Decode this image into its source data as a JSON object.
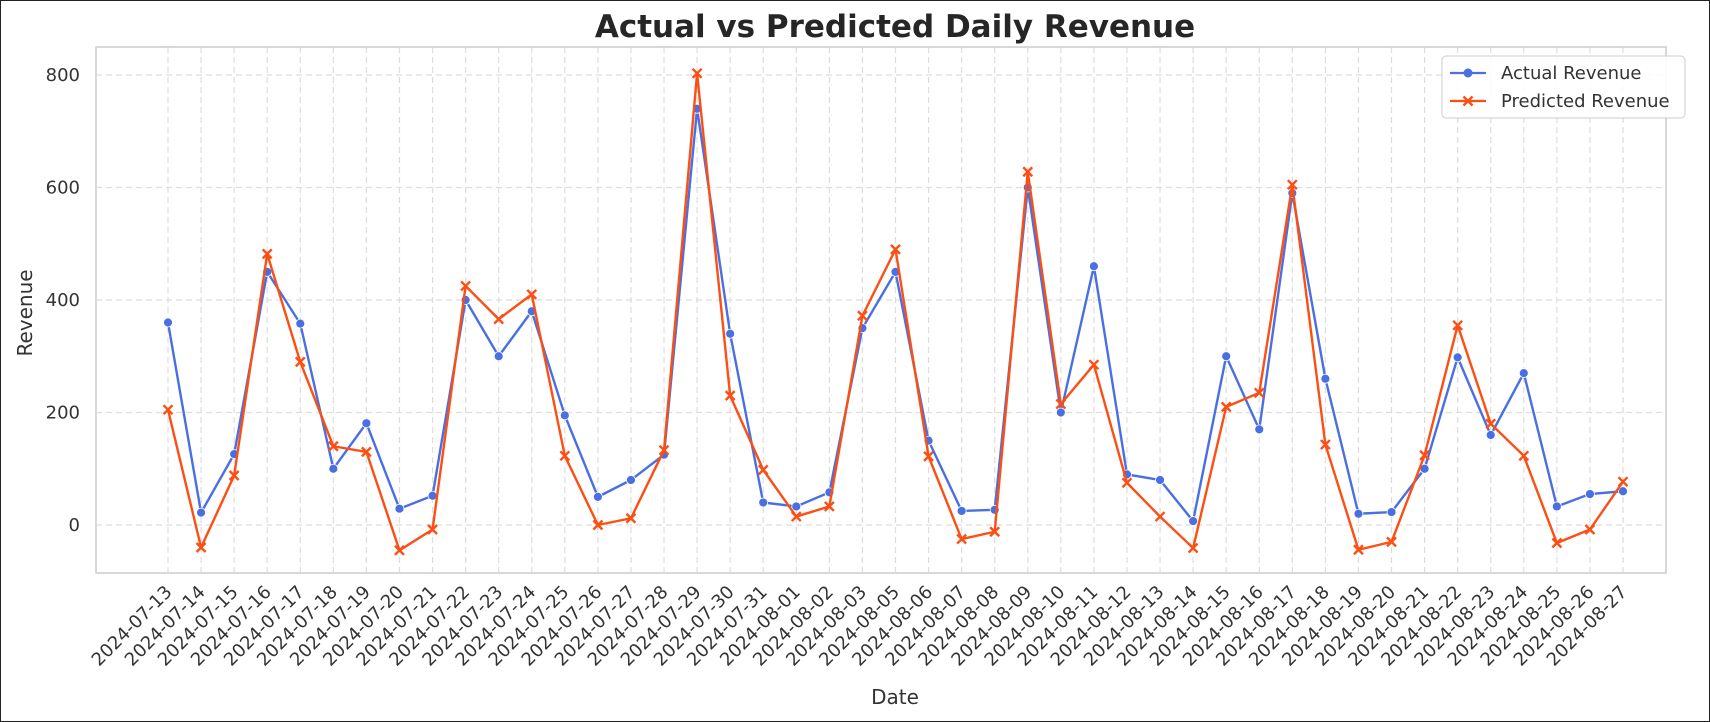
{
  "chart_data": {
    "type": "line",
    "title": "Actual vs Predicted Daily Revenue",
    "xlabel": "Date",
    "ylabel": "Revenue",
    "ylim": [
      -85,
      850
    ],
    "yticks": [
      0,
      200,
      400,
      600,
      800
    ],
    "grid": true,
    "legend_position": "top-right",
    "categories": [
      "2024-07-13",
      "2024-07-14",
      "2024-07-15",
      "2024-07-16",
      "2024-07-17",
      "2024-07-18",
      "2024-07-19",
      "2024-07-20",
      "2024-07-21",
      "2024-07-22",
      "2024-07-23",
      "2024-07-24",
      "2024-07-25",
      "2024-07-26",
      "2024-07-27",
      "2024-07-28",
      "2024-07-29",
      "2024-07-30",
      "2024-07-31",
      "2024-08-01",
      "2024-08-02",
      "2024-08-03",
      "2024-08-05",
      "2024-08-06",
      "2024-08-07",
      "2024-08-08",
      "2024-08-09",
      "2024-08-10",
      "2024-08-11",
      "2024-08-12",
      "2024-08-13",
      "2024-08-14",
      "2024-08-15",
      "2024-08-16",
      "2024-08-17",
      "2024-08-18",
      "2024-08-19",
      "2024-08-20",
      "2024-08-21",
      "2024-08-22",
      "2024-08-23",
      "2024-08-24",
      "2024-08-25",
      "2024-08-26",
      "2024-08-27"
    ],
    "series": [
      {
        "name": "Actual Revenue",
        "color": "#4a6fe3",
        "marker": "circle",
        "values": [
          360,
          22,
          126,
          450,
          358,
          100,
          181,
          29,
          52,
          400,
          300,
          380,
          195,
          50,
          80,
          125,
          740,
          340,
          40,
          33,
          58,
          350,
          450,
          150,
          25,
          27,
          600,
          200,
          460,
          90,
          80,
          7,
          300,
          170,
          590,
          260,
          20,
          23,
          100,
          298,
          160,
          270,
          33,
          55,
          60
        ]
      },
      {
        "name": "Predicted Revenue",
        "color": "#fc4f14",
        "marker": "x",
        "values": [
          205,
          -40,
          88,
          482,
          290,
          140,
          130,
          -45,
          -8,
          425,
          366,
          410,
          123,
          0,
          12,
          133,
          803,
          230,
          98,
          15,
          33,
          372,
          490,
          122,
          -25,
          -12,
          628,
          215,
          285,
          75,
          15,
          -41,
          210,
          235,
          605,
          143,
          -44,
          -30,
          124,
          355,
          180,
          123,
          -32,
          -8,
          77
        ]
      }
    ]
  }
}
